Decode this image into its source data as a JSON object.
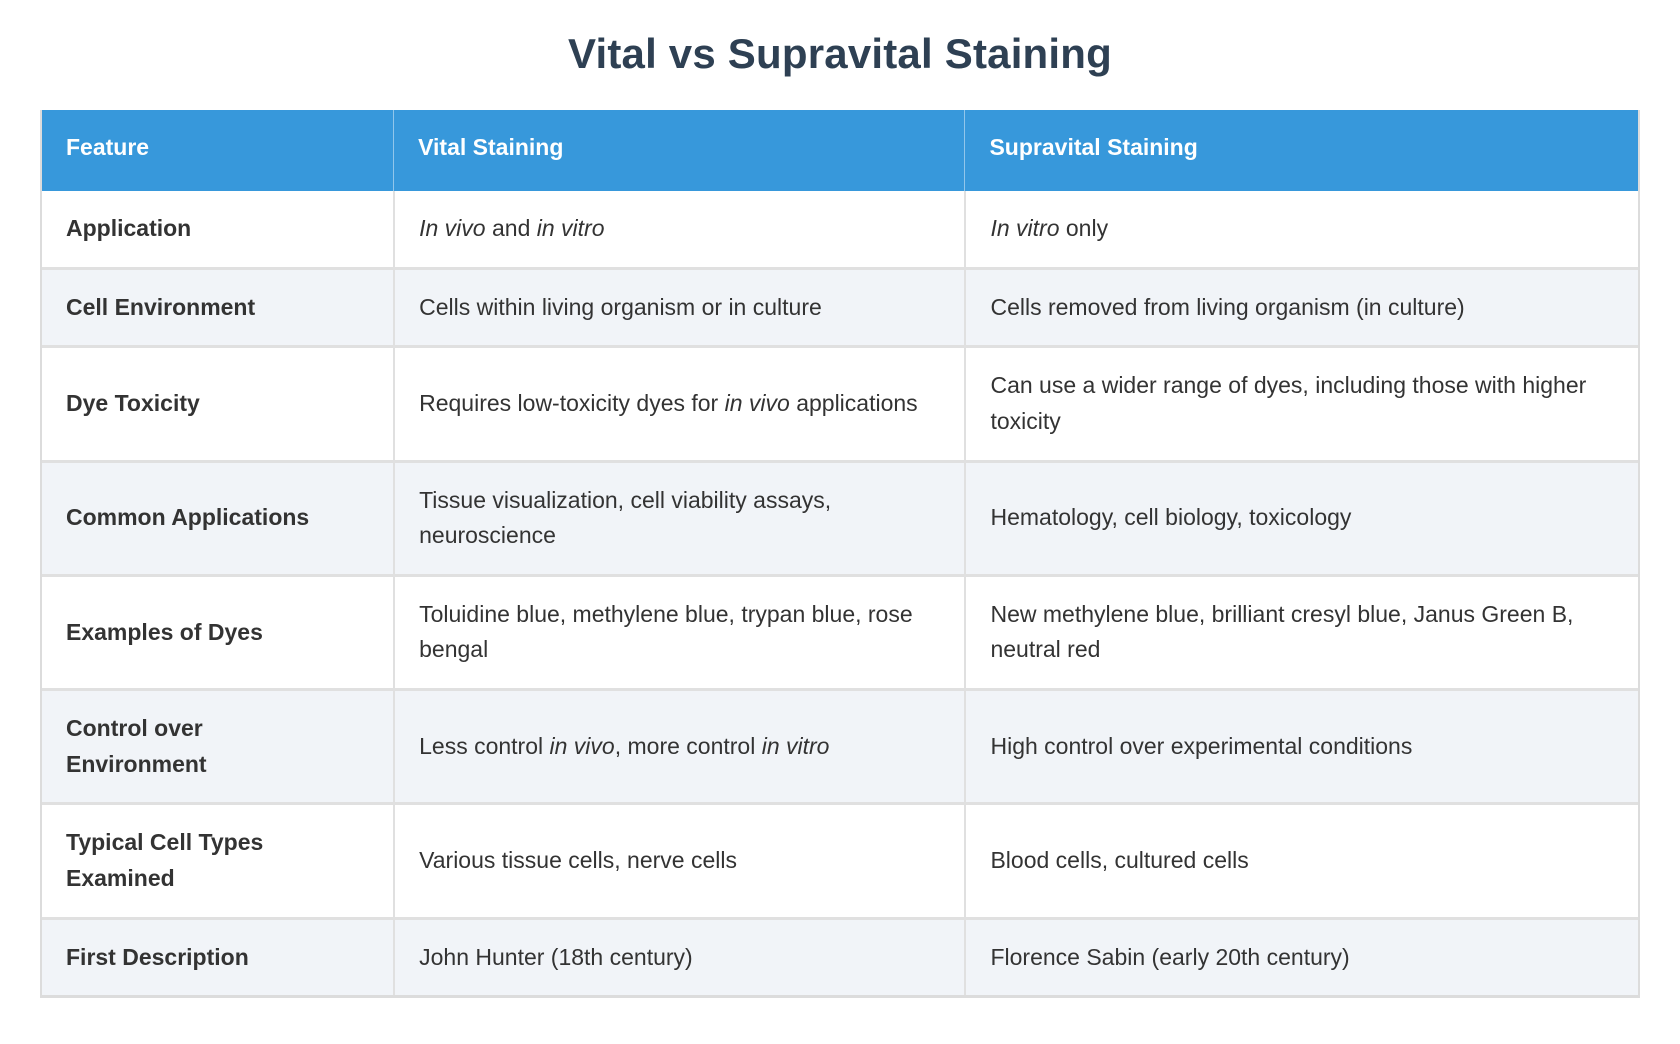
{
  "page": {
    "title": "Vital vs Supravital Staining"
  },
  "colors": {
    "header_bg": "#3798db",
    "header_text": "#ffffff",
    "title_text": "#2e4053",
    "stripe_bg": "#f1f4f8",
    "body_text": "#333333",
    "border": "#e0e0e0"
  },
  "table": {
    "headers": [
      "Feature",
      "Vital Staining",
      "Supravital Staining"
    ],
    "rows": [
      {
        "feature": "Application",
        "vital": [
          {
            "text": "In vivo",
            "italic": true
          },
          {
            "text": " and ",
            "italic": false
          },
          {
            "text": "in vitro",
            "italic": true
          }
        ],
        "supravital": [
          {
            "text": "In vitro",
            "italic": true
          },
          {
            "text": " only",
            "italic": false
          }
        ]
      },
      {
        "feature": "Cell Environment",
        "vital": [
          {
            "text": "Cells within living organism or in culture",
            "italic": false
          }
        ],
        "supravital": [
          {
            "text": "Cells removed from living organism (in culture)",
            "italic": false
          }
        ]
      },
      {
        "feature": "Dye Toxicity",
        "vital": [
          {
            "text": "Requires low-toxicity dyes for ",
            "italic": false
          },
          {
            "text": "in vivo",
            "italic": true
          },
          {
            "text": " applications",
            "italic": false
          }
        ],
        "supravital": [
          {
            "text": "Can use a wider range of dyes, including those with higher toxicity",
            "italic": false
          }
        ]
      },
      {
        "feature": "Common Applications",
        "vital": [
          {
            "text": "Tissue visualization, cell viability assays, neuroscience",
            "italic": false
          }
        ],
        "supravital": [
          {
            "text": "Hematology, cell biology, toxicology",
            "italic": false
          }
        ]
      },
      {
        "feature": "Examples of Dyes",
        "vital": [
          {
            "text": "Toluidine blue, methylene blue, trypan blue, rose bengal",
            "italic": false
          }
        ],
        "supravital": [
          {
            "text": "New methylene blue, brilliant cresyl blue, Janus Green B, neutral red",
            "italic": false
          }
        ]
      },
      {
        "feature": "Control over\nEnvironment",
        "vital": [
          {
            "text": "Less control ",
            "italic": false
          },
          {
            "text": "in vivo",
            "italic": true
          },
          {
            "text": ", more control ",
            "italic": false
          },
          {
            "text": "in vitro",
            "italic": true
          }
        ],
        "supravital": [
          {
            "text": "High control over experimental conditions",
            "italic": false
          }
        ]
      },
      {
        "feature": "Typical Cell Types\nExamined",
        "vital": [
          {
            "text": "Various tissue cells, nerve cells",
            "italic": false
          }
        ],
        "supravital": [
          {
            "text": "Blood cells, cultured cells",
            "italic": false
          }
        ]
      },
      {
        "feature": "First Description",
        "vital": [
          {
            "text": "John Hunter (18th century)",
            "italic": false
          }
        ],
        "supravital": [
          {
            "text": "Florence Sabin (early 20th century)",
            "italic": false
          }
        ]
      }
    ]
  }
}
